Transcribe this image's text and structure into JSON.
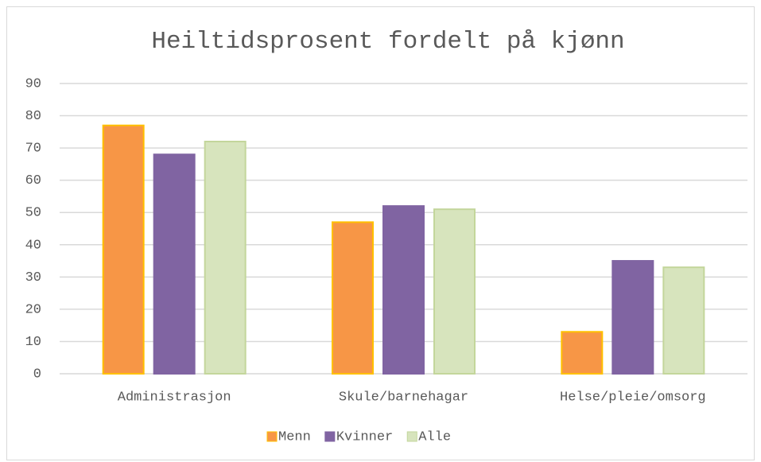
{
  "chart_data": {
    "type": "bar",
    "title": "Heiltidsprosent fordelt på kjønn",
    "categories": [
      "Administrasjon",
      "Skule/barnehagar",
      "Helse/pleie/omsorg"
    ],
    "series": [
      {
        "name": "Menn",
        "color": "#f79646",
        "edgecolor": "#ffc000",
        "values": [
          77,
          47,
          13
        ]
      },
      {
        "name": "Kvinner",
        "color": "#8064a2",
        "edgecolor": "#8064a2",
        "values": [
          68,
          52,
          35
        ]
      },
      {
        "name": "Alle",
        "color": "#d7e4bd",
        "edgecolor": "#c3d69b",
        "values": [
          72,
          51,
          33
        ]
      }
    ],
    "ylim": [
      0,
      90
    ],
    "yticks": [
      0,
      10,
      20,
      30,
      40,
      50,
      60,
      70,
      80,
      90
    ],
    "grid": true,
    "legend": "bottom"
  }
}
